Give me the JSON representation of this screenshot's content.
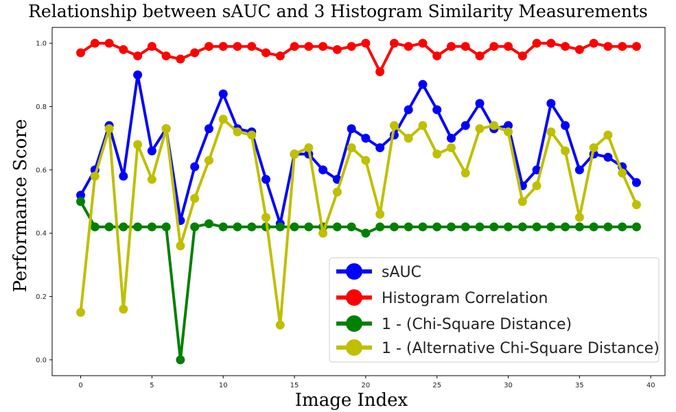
{
  "chart_data": {
    "type": "line",
    "title": "Relationship between sAUC and 3 Histogram Similarity Measurements",
    "xlabel": "Image Index",
    "ylabel": "Performance Score",
    "xlim": [
      -2,
      41
    ],
    "ylim": [
      -0.05,
      1.05
    ],
    "xticks": [
      0,
      5,
      10,
      15,
      20,
      25,
      30,
      35,
      40
    ],
    "yticks": [
      0.0,
      0.2,
      0.4,
      0.6,
      0.8,
      1.0
    ],
    "ytick_labels": [
      "0.0",
      "0.2",
      "0.4",
      "0.6",
      "0.8",
      "1.0"
    ],
    "grid": false,
    "legend_position": "lower-right",
    "x": [
      0,
      1,
      2,
      3,
      4,
      5,
      6,
      7,
      8,
      9,
      10,
      11,
      12,
      13,
      14,
      15,
      16,
      17,
      18,
      19,
      20,
      21,
      22,
      23,
      24,
      25,
      26,
      27,
      28,
      29,
      30,
      31,
      32,
      33,
      34,
      35,
      36,
      37,
      38,
      39
    ],
    "series": [
      {
        "name": "sAUC",
        "color": "#0000ff",
        "values": [
          0.52,
          0.6,
          0.74,
          0.58,
          0.9,
          0.66,
          0.73,
          0.44,
          0.61,
          0.73,
          0.84,
          0.73,
          0.72,
          0.57,
          0.43,
          0.65,
          0.65,
          0.6,
          0.57,
          0.73,
          0.7,
          0.67,
          0.71,
          0.79,
          0.87,
          0.79,
          0.7,
          0.74,
          0.81,
          0.73,
          0.74,
          0.55,
          0.6,
          0.81,
          0.74,
          0.6,
          0.65,
          0.64,
          0.61,
          0.56
        ]
      },
      {
        "name": "Histogram Correlation",
        "color": "#ff0000",
        "values": [
          0.97,
          1.0,
          1.0,
          0.98,
          0.96,
          0.99,
          0.96,
          0.95,
          0.97,
          0.99,
          0.99,
          0.99,
          0.99,
          0.97,
          0.96,
          0.99,
          0.99,
          0.99,
          0.98,
          0.99,
          1.0,
          0.91,
          1.0,
          0.99,
          1.0,
          0.96,
          0.99,
          0.99,
          0.96,
          0.99,
          0.99,
          0.96,
          1.0,
          1.0,
          0.99,
          0.98,
          1.0,
          0.99,
          0.99,
          0.99
        ]
      },
      {
        "name": "1 - (Chi-Square Distance)",
        "color": "#008000",
        "values": [
          0.5,
          0.42,
          0.42,
          0.42,
          0.42,
          0.42,
          0.42,
          0.0,
          0.42,
          0.43,
          0.42,
          0.42,
          0.42,
          0.42,
          0.42,
          0.42,
          0.42,
          0.42,
          0.42,
          0.42,
          0.4,
          0.42,
          0.42,
          0.42,
          0.42,
          0.42,
          0.42,
          0.42,
          0.42,
          0.42,
          0.42,
          0.42,
          0.42,
          0.42,
          0.42,
          0.42,
          0.42,
          0.42,
          0.42,
          0.42
        ]
      },
      {
        "name": "1 - (Alternative Chi-Square Distance)",
        "color": "#bfbf00",
        "values": [
          0.15,
          0.58,
          0.73,
          0.16,
          0.68,
          0.57,
          0.73,
          0.36,
          0.51,
          0.63,
          0.76,
          0.72,
          0.71,
          0.45,
          0.11,
          0.65,
          0.67,
          0.4,
          0.53,
          0.67,
          0.63,
          0.46,
          0.74,
          0.7,
          0.74,
          0.65,
          0.67,
          0.59,
          0.73,
          0.74,
          0.72,
          0.5,
          0.55,
          0.72,
          0.66,
          0.45,
          0.67,
          0.71,
          0.59,
          0.49
        ]
      }
    ]
  }
}
